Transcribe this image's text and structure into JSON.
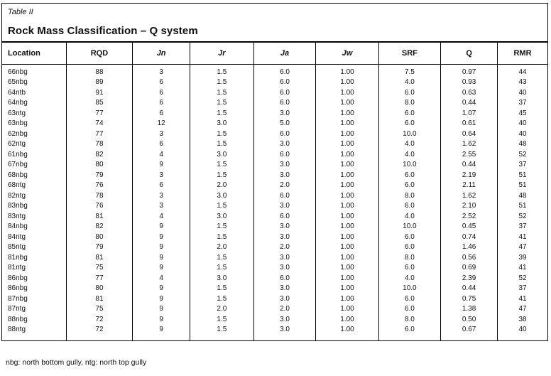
{
  "table": {
    "caption": "Table II",
    "title": "Rock Mass Classification – Q system",
    "columns": [
      {
        "label": "Location",
        "italic": false
      },
      {
        "label": "RQD",
        "italic": false
      },
      {
        "label": "Jn",
        "italic": true
      },
      {
        "label": "Jr",
        "italic": true
      },
      {
        "label": "Ja",
        "italic": true
      },
      {
        "label": "Jw",
        "italic": true
      },
      {
        "label": "SRF",
        "italic": false
      },
      {
        "label": "Q",
        "italic": false
      },
      {
        "label": "RMR",
        "italic": false
      }
    ],
    "rows": [
      [
        "66nbg",
        "88",
        "3",
        "1.5",
        "6.0",
        "1.00",
        "7.5",
        "0.97",
        "44"
      ],
      [
        "65nbg",
        "89",
        "6",
        "1.5",
        "6.0",
        "1.00",
        "4.0",
        "0.93",
        "43"
      ],
      [
        "64ntb",
        "91",
        "6",
        "1.5",
        "6.0",
        "1.00",
        "6.0",
        "0.63",
        "40"
      ],
      [
        "64nbg",
        "85",
        "6",
        "1.5",
        "6.0",
        "1.00",
        "8.0",
        "0.44",
        "37"
      ],
      [
        "63ntg",
        "77",
        "6",
        "1.5",
        "3.0",
        "1.00",
        "6.0",
        "1.07",
        "45"
      ],
      [
        "63nbg",
        "74",
        "12",
        "3.0",
        "5.0",
        "1.00",
        "6.0",
        "0.61",
        "40"
      ],
      [
        "62nbg",
        "77",
        "3",
        "1.5",
        "6.0",
        "1.00",
        "10.0",
        "0.64",
        "40"
      ],
      [
        "62ntg",
        "78",
        "6",
        "1.5",
        "3.0",
        "1.00",
        "4.0",
        "1.62",
        "48"
      ],
      [
        "61nbg",
        "82",
        "4",
        "3.0",
        "6.0",
        "1.00",
        "4.0",
        "2.55",
        "52"
      ],
      [
        "67nbg",
        "80",
        "9",
        "1.5",
        "3.0",
        "1.00",
        "10.0",
        "0.44",
        "37"
      ],
      [
        "68nbg",
        "79",
        "3",
        "1.5",
        "3.0",
        "1.00",
        "6.0",
        "2.19",
        "51"
      ],
      [
        "68ntg",
        "76",
        "6",
        "2.0",
        "2.0",
        "1.00",
        "6.0",
        "2.11",
        "51"
      ],
      [
        "82ntg",
        "78",
        "3",
        "3.0",
        "6.0",
        "1.00",
        "8.0",
        "1.62",
        "48"
      ],
      [
        "83nbg",
        "76",
        "3",
        "1.5",
        "3.0",
        "1.00",
        "6.0",
        "2.10",
        "51"
      ],
      [
        "83ntg",
        "81",
        "4",
        "3.0",
        "6.0",
        "1.00",
        "4.0",
        "2.52",
        "52"
      ],
      [
        "84nbg",
        "82",
        "9",
        "1.5",
        "3.0",
        "1.00",
        "10.0",
        "0.45",
        "37"
      ],
      [
        "84ntg",
        "80",
        "9",
        "1.5",
        "3.0",
        "1.00",
        "6.0",
        "0.74",
        "41"
      ],
      [
        "85ntg",
        "79",
        "9",
        "2.0",
        "2.0",
        "1.00",
        "6.0",
        "1.46",
        "47"
      ],
      [
        "81nbg",
        "81",
        "9",
        "1.5",
        "3.0",
        "1.00",
        "8.0",
        "0.56",
        "39"
      ],
      [
        "81ntg",
        "75",
        "9",
        "1.5",
        "3.0",
        "1.00",
        "6.0",
        "0.69",
        "41"
      ],
      [
        "86nbg",
        "77",
        "4",
        "3.0",
        "6.0",
        "1.00",
        "4.0",
        "2.39",
        "52"
      ],
      [
        "86nbg",
        "80",
        "9",
        "1.5",
        "3.0",
        "1.00",
        "10.0",
        "0.44",
        "37"
      ],
      [
        "87nbg",
        "81",
        "9",
        "1.5",
        "3.0",
        "1.00",
        "6.0",
        "0.75",
        "41"
      ],
      [
        "87ntg",
        "75",
        "9",
        "2.0",
        "2.0",
        "1.00",
        "6.0",
        "1.38",
        "47"
      ],
      [
        "88nbg",
        "72",
        "9",
        "1.5",
        "3.0",
        "1.00",
        "8.0",
        "0.50",
        "38"
      ],
      [
        "88ntg",
        "72",
        "9",
        "1.5",
        "3.0",
        "1.00",
        "6.0",
        "0.67",
        "40"
      ]
    ],
    "footnote": "nbg: north bottom gully, ntg: north top gully"
  }
}
